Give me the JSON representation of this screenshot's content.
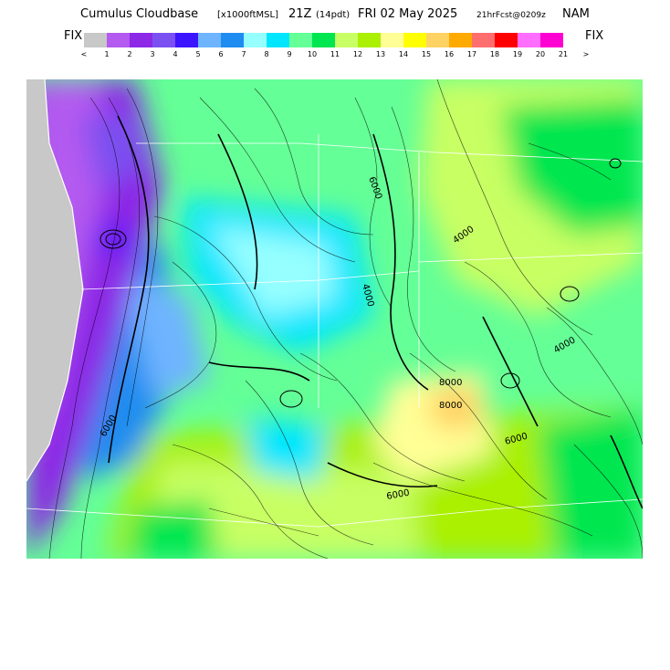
{
  "header": {
    "title": "Cumulus Cloudbase",
    "units": "[x1000ftMSL]",
    "valid_time": "21Z",
    "local_time": "(14pdt)",
    "date": "FRI 02 May 2025",
    "forecast": "21hrFcst@0209z",
    "model": "NAM"
  },
  "legend": {
    "fix_left": "FIX",
    "fix_right": "FIX",
    "swatch_colors": [
      "#c8c8c8",
      "#b45af0",
      "#8c28e6",
      "#7a50f0",
      "#3c14ff",
      "#6eb4ff",
      "#1e8cf0",
      "#96ffff",
      "#00e6ff",
      "#64ff96",
      "#00e650",
      "#c8ff64",
      "#aaf000",
      "#ffff96",
      "#ffff00",
      "#ffd264",
      "#ffaa00",
      "#ff6e6e",
      "#ff0000",
      "#ff6eff",
      "#ff00d2"
    ],
    "tick_labels": [
      "<",
      "1",
      "2",
      "3",
      "4",
      "5",
      "6",
      "7",
      "8",
      "9",
      "10",
      "11",
      "12",
      "13",
      "14",
      "15",
      "16",
      "17",
      "18",
      "19",
      "20",
      "21",
      ">"
    ]
  },
  "map": {
    "contour_labels": [
      "6000",
      "4000",
      "6000",
      "8000",
      "8000",
      "6000",
      "4000",
      "4000",
      "6000"
    ]
  }
}
